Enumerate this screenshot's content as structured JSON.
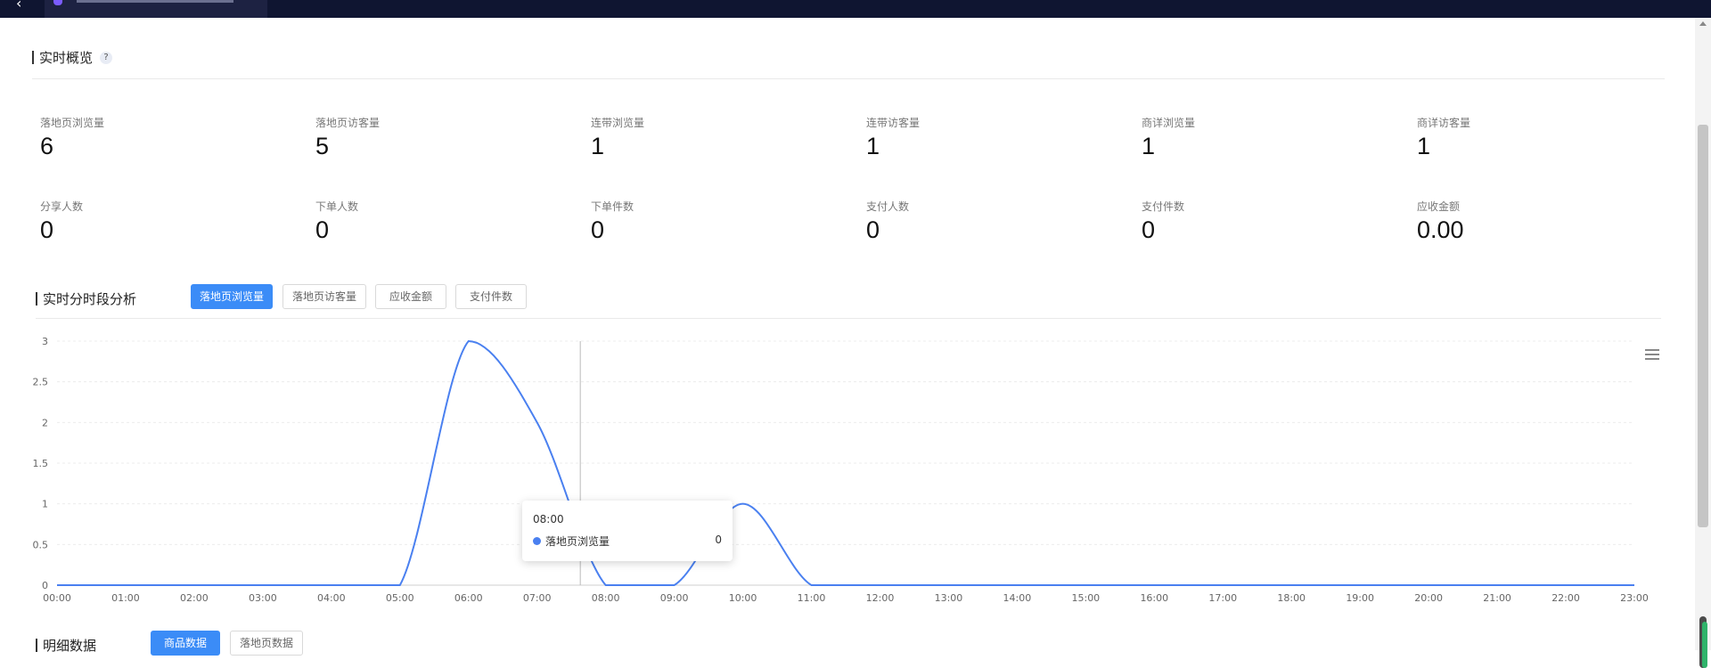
{
  "overview": {
    "title": "实时概览",
    "help": "?",
    "metrics_row1": [
      {
        "label": "落地页浏览量",
        "value": "6"
      },
      {
        "label": "落地页访客量",
        "value": "5"
      },
      {
        "label": "连带浏览量",
        "value": "1"
      },
      {
        "label": "连带访客量",
        "value": "1"
      },
      {
        "label": "商详浏览量",
        "value": "1"
      },
      {
        "label": "商详访客量",
        "value": "1"
      }
    ],
    "metrics_row2": [
      {
        "label": "分享人数",
        "value": "0"
      },
      {
        "label": "下单人数",
        "value": "0"
      },
      {
        "label": "下单件数",
        "value": "0"
      },
      {
        "label": "支付人数",
        "value": "0"
      },
      {
        "label": "支付件数",
        "value": "0"
      },
      {
        "label": "应收金额",
        "value": "0.00"
      }
    ]
  },
  "analysis": {
    "title": "实时分时段分析",
    "tabs": [
      {
        "label": "落地页浏览量",
        "active": true
      },
      {
        "label": "落地页访客量",
        "active": false
      },
      {
        "label": "应收金额",
        "active": false
      },
      {
        "label": "支付件数",
        "active": false
      }
    ]
  },
  "tooltip": {
    "title": "08:00",
    "series": "落地页浏览量",
    "value": "0"
  },
  "details": {
    "title": "明细数据",
    "tabs": [
      {
        "label": "商品数据",
        "active": true
      },
      {
        "label": "落地页数据",
        "active": false
      }
    ]
  },
  "colors": {
    "accent": "#3b8cf7",
    "line": "#4a80f0",
    "topbar": "#0f1531"
  },
  "icons": {
    "back": "chevron-left-icon",
    "chart_menu": "hamburger-menu-icon"
  },
  "chart_data": {
    "type": "line",
    "series": [
      {
        "name": "落地页浏览量",
        "values": [
          0,
          0,
          0,
          0,
          0,
          0,
          3,
          2,
          0,
          0,
          1,
          0,
          0,
          0,
          0,
          0,
          0,
          0,
          0,
          0,
          0,
          0,
          0,
          0
        ]
      }
    ],
    "categories": [
      "00:00",
      "01:00",
      "02:00",
      "03:00",
      "04:00",
      "05:00",
      "06:00",
      "07:00",
      "08:00",
      "09:00",
      "10:00",
      "11:00",
      "12:00",
      "13:00",
      "14:00",
      "15:00",
      "16:00",
      "17:00",
      "18:00",
      "19:00",
      "20:00",
      "21:00",
      "22:00",
      "23:00"
    ],
    "y_ticks": [
      "0",
      "0.5",
      "1",
      "1.5",
      "2",
      "2.5",
      "3"
    ],
    "ylim": [
      0,
      3
    ],
    "smooth": true,
    "grid": true,
    "hover_category": "08:00"
  }
}
